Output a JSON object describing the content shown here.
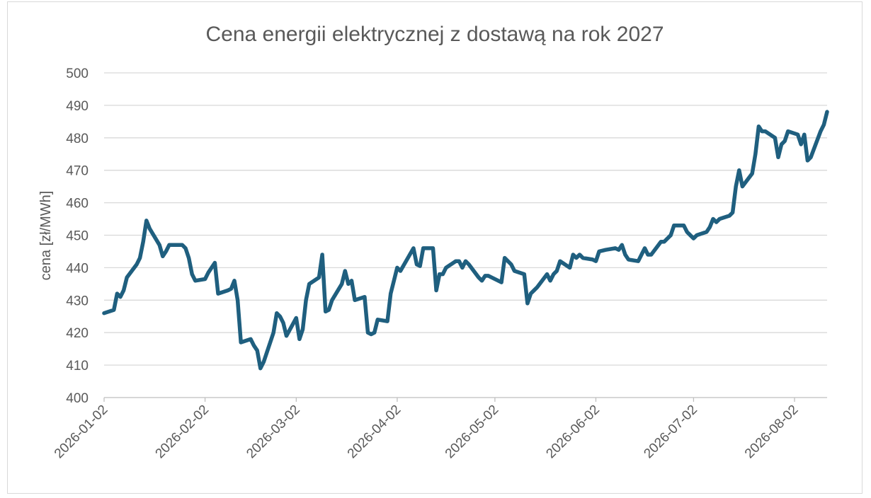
{
  "chart_data": {
    "type": "line",
    "title": "Cena energii elektrycznej z dostawą na rok 2027",
    "xlabel": "",
    "ylabel": "cena [zł/MWh]",
    "ylim": [
      400,
      500
    ],
    "yticks": [
      400,
      410,
      420,
      430,
      440,
      450,
      460,
      470,
      480,
      490,
      500
    ],
    "xticks": [
      "2026-01-02",
      "2026-02-02",
      "2026-03-02",
      "2026-04-02",
      "2026-05-02",
      "2026-06-02",
      "2026-07-02",
      "2026-08-02"
    ],
    "xlim": [
      "2026-01-02",
      "2026-08-12"
    ],
    "grid": true,
    "legend": "none",
    "line_color": "#1f5f7f",
    "series": [
      {
        "x": [
          "2026-01-02",
          "2026-01-05",
          "2026-01-06",
          "2026-01-07",
          "2026-01-08",
          "2026-01-09",
          "2026-01-12",
          "2026-01-13",
          "2026-01-14",
          "2026-01-15",
          "2026-01-16",
          "2026-01-19",
          "2026-01-20",
          "2026-01-21",
          "2026-01-22",
          "2026-01-23",
          "2026-01-26",
          "2026-01-27",
          "2026-01-28",
          "2026-01-29",
          "2026-01-30",
          "2026-02-02",
          "2026-02-03",
          "2026-02-04",
          "2026-02-05",
          "2026-02-06",
          "2026-02-09",
          "2026-02-10",
          "2026-02-11",
          "2026-02-12",
          "2026-02-13",
          "2026-02-16",
          "2026-02-17",
          "2026-02-18",
          "2026-02-19",
          "2026-02-20",
          "2026-02-23",
          "2026-02-24",
          "2026-02-25",
          "2026-02-26",
          "2026-02-27",
          "2026-03-02",
          "2026-03-03",
          "2026-03-04",
          "2026-03-05",
          "2026-03-06",
          "2026-03-09",
          "2026-03-10",
          "2026-03-11",
          "2026-03-12",
          "2026-03-13",
          "2026-03-16",
          "2026-03-17",
          "2026-03-18",
          "2026-03-19",
          "2026-03-20",
          "2026-03-23",
          "2026-03-24",
          "2026-03-25",
          "2026-03-26",
          "2026-03-27",
          "2026-03-30",
          "2026-03-31",
          "2026-04-01",
          "2026-04-02",
          "2026-04-03",
          "2026-04-07",
          "2026-04-08",
          "2026-04-09",
          "2026-04-10",
          "2026-04-13",
          "2026-04-14",
          "2026-04-15",
          "2026-04-16",
          "2026-04-17",
          "2026-04-20",
          "2026-04-21",
          "2026-04-22",
          "2026-04-23",
          "2026-04-24",
          "2026-04-27",
          "2026-04-28",
          "2026-04-29",
          "2026-04-30",
          "2026-05-04",
          "2026-05-05",
          "2026-05-06",
          "2026-05-07",
          "2026-05-08",
          "2026-05-11",
          "2026-05-12",
          "2026-05-13",
          "2026-05-14",
          "2026-05-15",
          "2026-05-18",
          "2026-05-19",
          "2026-05-20",
          "2026-05-21",
          "2026-05-22",
          "2026-05-25",
          "2026-05-26",
          "2026-05-27",
          "2026-05-28",
          "2026-05-29",
          "2026-06-01",
          "2026-06-02",
          "2026-06-03",
          "2026-06-05",
          "2026-06-08",
          "2026-06-09",
          "2026-06-10",
          "2026-06-11",
          "2026-06-12",
          "2026-06-15",
          "2026-06-16",
          "2026-06-17",
          "2026-06-18",
          "2026-06-19",
          "2026-06-22",
          "2026-06-23",
          "2026-06-24",
          "2026-06-25",
          "2026-06-26",
          "2026-06-29",
          "2026-06-30",
          "2026-07-01",
          "2026-07-02",
          "2026-07-03",
          "2026-07-06",
          "2026-07-07",
          "2026-07-08",
          "2026-07-09",
          "2026-07-10",
          "2026-07-13",
          "2026-07-14",
          "2026-07-15",
          "2026-07-16",
          "2026-07-17",
          "2026-07-20",
          "2026-07-21",
          "2026-07-22",
          "2026-07-23",
          "2026-07-24",
          "2026-07-27",
          "2026-07-28",
          "2026-07-29",
          "2026-07-30",
          "2026-07-31",
          "2026-08-03",
          "2026-08-04",
          "2026-08-05",
          "2026-08-06",
          "2026-08-07",
          "2026-08-10",
          "2026-08-11",
          "2026-08-12"
        ],
        "values": [
          426,
          427,
          432,
          431,
          433,
          437,
          441,
          443,
          448,
          454.5,
          452,
          447,
          443.5,
          445,
          447,
          447,
          447,
          446,
          443,
          438,
          436,
          436.5,
          438.5,
          440,
          441.5,
          432,
          433,
          433.5,
          436,
          430,
          417,
          418,
          416,
          414.5,
          409,
          411,
          420,
          426,
          425,
          423,
          419,
          424.5,
          418,
          421,
          430,
          435,
          437,
          444,
          426.5,
          427,
          430,
          435,
          439,
          435,
          436,
          430,
          431,
          420,
          419.5,
          420,
          424,
          423.5,
          432,
          436,
          440,
          439,
          446,
          441,
          440.5,
          446,
          446,
          433,
          438,
          438,
          440,
          442,
          442,
          440,
          442,
          441,
          437,
          436,
          437.5,
          437.5,
          435.5,
          443,
          442,
          441,
          439,
          438,
          429,
          432,
          433,
          434,
          438,
          436,
          438,
          439,
          442,
          440,
          444,
          443,
          444,
          443,
          442.5,
          442,
          445,
          445.5,
          446,
          445.5,
          447,
          444,
          442.5,
          442,
          444,
          446,
          444,
          444,
          448,
          448,
          449,
          450,
          453,
          453,
          451,
          450,
          449,
          450,
          451,
          452.5,
          455,
          454,
          455,
          456,
          457,
          465,
          470,
          465,
          469,
          475,
          483.5,
          482,
          482,
          480,
          474,
          478,
          479,
          482,
          481,
          478,
          481,
          473,
          474,
          482,
          484,
          488
        ]
      }
    ]
  }
}
